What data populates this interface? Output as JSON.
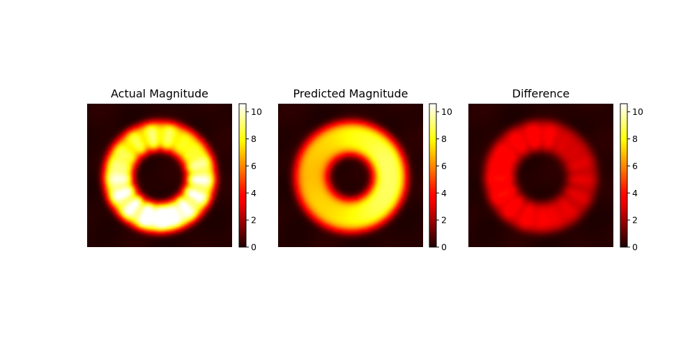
{
  "chart_data": [
    {
      "type": "heatmap",
      "title": "Actual Magnitude",
      "colormap": "hot",
      "colorbar": {
        "range": [
          0,
          10.6
        ],
        "ticks": [
          0,
          2,
          4,
          6,
          8,
          10
        ]
      },
      "field": {
        "shape": "ring",
        "ring_radius": 0.285,
        "ring_width": 0.105,
        "peak": 10.6,
        "edge_jitter": 0.35,
        "bright_side": "bottom"
      }
    },
    {
      "type": "heatmap",
      "title": "Predicted Magnitude",
      "colormap": "hot",
      "colorbar": {
        "range": [
          0,
          10.6
        ],
        "ticks": [
          0,
          2,
          4,
          6,
          8,
          10
        ]
      },
      "field": {
        "shape": "ring",
        "ring_radius": 0.27,
        "ring_width": 0.12,
        "peak": 8.9,
        "edge_jitter": 0.0,
        "bright_side": "right"
      }
    },
    {
      "type": "heatmap",
      "title": "Difference",
      "colormap": "hot",
      "colorbar": {
        "range": [
          0,
          10.6
        ],
        "ticks": [
          0,
          2,
          4,
          6,
          8,
          10
        ]
      },
      "field": {
        "shape": "ring",
        "ring_radius": 0.285,
        "ring_width": 0.11,
        "peak": 3.6,
        "edge_jitter": 0.35,
        "bright_side": "left"
      }
    }
  ],
  "colors": {
    "background": "#ffffff",
    "text": "#000000"
  }
}
